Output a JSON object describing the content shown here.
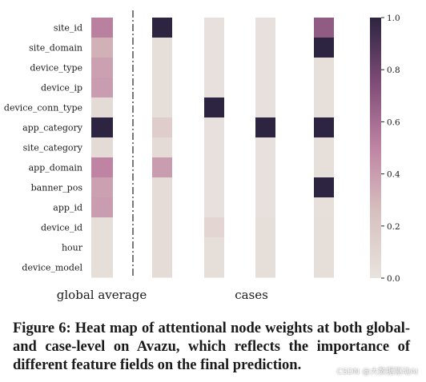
{
  "chart_data": {
    "type": "heatmap",
    "features": [
      "site_id",
      "site_domain",
      "device_type",
      "device_ip",
      "device_conn_type",
      "app_category",
      "site_category",
      "app_domain",
      "banner_pos",
      "app_id",
      "device_id",
      "hour",
      "device_model"
    ],
    "global_average": {
      "label": "global average",
      "values": [
        0.52,
        0.32,
        0.38,
        0.4,
        0.06,
        1.0,
        0.06,
        0.5,
        0.38,
        0.4,
        0.04,
        0.04,
        0.04
      ]
    },
    "cases_label": "cases",
    "cases": [
      [
        1.0,
        0.04,
        0.04,
        0.04,
        0.04,
        0.16,
        0.06,
        0.4,
        0.05,
        0.05,
        0.05,
        0.05,
        0.05
      ],
      [
        0.02,
        0.02,
        0.02,
        0.02,
        1.0,
        0.02,
        0.02,
        0.02,
        0.02,
        0.02,
        0.1,
        0.04,
        0.04
      ],
      [
        0.02,
        0.02,
        0.02,
        0.02,
        0.02,
        1.0,
        0.02,
        0.02,
        0.02,
        0.02,
        0.04,
        0.04,
        0.04
      ],
      [
        0.68,
        1.0,
        0.03,
        0.03,
        0.03,
        1.0,
        0.03,
        0.03,
        1.0,
        0.03,
        0.04,
        0.04,
        0.04
      ]
    ],
    "colorbar": {
      "vmin": 0.0,
      "vmax": 1.0,
      "ticks": [
        "0.0",
        "0.2",
        "0.4",
        "0.6",
        "0.8",
        "1.0"
      ]
    },
    "colors": {
      "low": "#e8e3de",
      "mid": "#bf84a3",
      "high": "#2c2440"
    }
  },
  "caption": "Figure 6: Heat map of attentional node weights at both global- and case-level on Avazu, which reflects the importance of different feature fields on the final prediction.",
  "watermark": "CSDN @大数据驱动AI"
}
